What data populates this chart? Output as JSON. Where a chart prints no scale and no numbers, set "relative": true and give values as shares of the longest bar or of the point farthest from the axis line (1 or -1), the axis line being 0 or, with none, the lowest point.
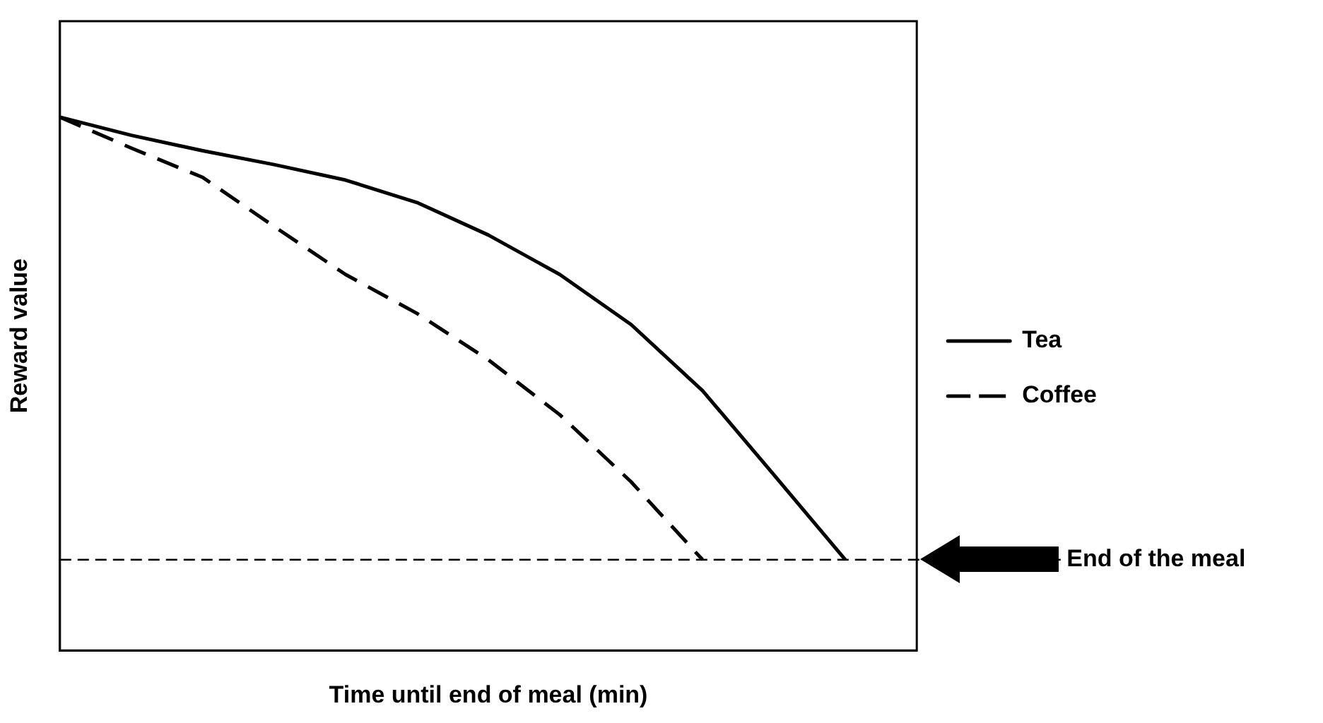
{
  "chart_data": {
    "type": "line",
    "relative": true,
    "xlabel": "Time until end of meal (min)",
    "ylabel": "Reward value",
    "categories": [
      null,
      null,
      null,
      null,
      null,
      null,
      null,
      null,
      null,
      null,
      null,
      null,
      null
    ],
    "series": [
      {
        "name": "Tea",
        "color": "#000000",
        "line_style": "solid",
        "values": [
          1,
          0.966,
          0.937,
          0.911,
          0.882,
          0.84,
          0.779,
          0.705,
          0.611,
          0.487,
          0.329,
          0.17,
          null
        ]
      },
      {
        "name": "Coffee",
        "color": "#000000",
        "line_style": "dashed",
        "values": [
          1,
          0.942,
          0.887,
          0.795,
          0.705,
          0.632,
          0.545,
          0.442,
          0.316,
          0.17,
          null,
          null,
          null
        ]
      }
    ],
    "ref_lines": [
      {
        "axis": "y",
        "value": 0.17,
        "label": "End of the meal",
        "line_style": "dashed",
        "color": "#000000"
      }
    ],
    "legend": "right",
    "grid": false,
    "marker": "none"
  }
}
